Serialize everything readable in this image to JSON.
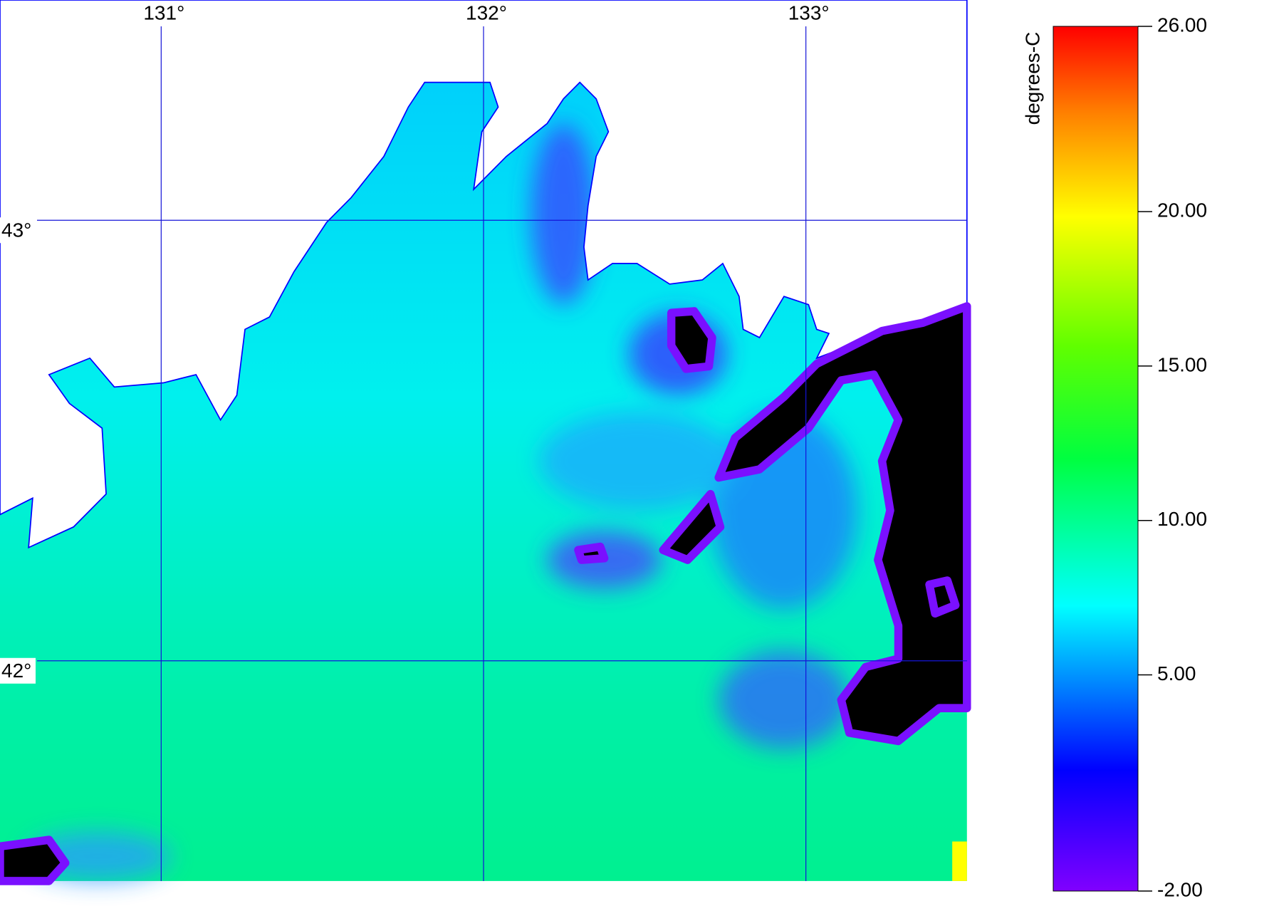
{
  "chart_data": {
    "type": "map",
    "xlim": [
      130.5,
      133.5
    ],
    "ylim": [
      41.5,
      43.5
    ],
    "xticks": [
      {
        "value": 131,
        "label": "131°"
      },
      {
        "value": 132,
        "label": "132°"
      },
      {
        "value": 133,
        "label": "133°"
      }
    ],
    "yticks": [
      {
        "value": 43,
        "label": "43°"
      },
      {
        "value": 42,
        "label": "42°"
      }
    ],
    "grid_color": "#1414d8",
    "colorbar": {
      "label": "degrees-C",
      "lim": [
        -2,
        26
      ],
      "ticks": [
        {
          "value": 26,
          "label": "26.00"
        },
        {
          "value": 20,
          "label": "20.00"
        },
        {
          "value": 15,
          "label": "15.00"
        },
        {
          "value": 10,
          "label": "10.00"
        },
        {
          "value": 5,
          "label": "5.00"
        },
        {
          "value": -2,
          "label": "-2.00"
        }
      ]
    }
  }
}
